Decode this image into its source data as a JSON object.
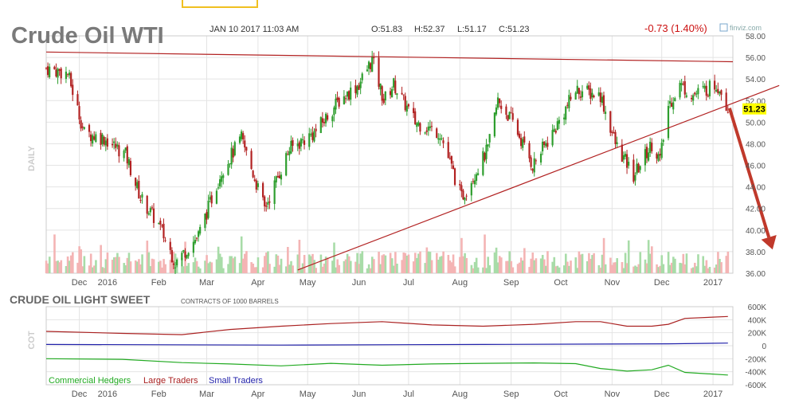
{
  "header": {
    "title": "Crude Oil WTI",
    "datetime": "JAN 10 2017 11:03 AM",
    "open": "O:51.83",
    "high": "H:52.37",
    "low": "L:51.17",
    "close": "C:51.23",
    "change": "-0.73 (1.40%)",
    "source": "finviz.com",
    "timeframe_label": "DAILY"
  },
  "colors": {
    "up": "#2e9e2e",
    "down": "#b22222",
    "trendline": "#b22222",
    "arrow": "#c0392b",
    "price_tag": "#ffff00",
    "axis_text": "#555555",
    "grid": "#e4e4e4",
    "commercial": "#22aa22",
    "large": "#aa2222",
    "small": "#2222aa"
  },
  "chart_data": [
    {
      "type": "candlestick",
      "title": "Crude Oil WTI",
      "x_ticks": [
        "Dec",
        "2016",
        "Feb",
        "Mar",
        "Apr",
        "May",
        "Jun",
        "Jul",
        "Aug",
        "Sep",
        "Oct",
        "Nov",
        "Dec",
        "2017"
      ],
      "y_ticks": [
        "58.00",
        "56.00",
        "54.00",
        "52.00",
        "50.00",
        "48.00",
        "46.00",
        "44.00",
        "42.00",
        "40.00",
        "38.00",
        "36.00"
      ],
      "ylim": [
        36,
        58
      ],
      "last_price": "51.23",
      "grid": true,
      "closes": [
        {
          "date": "2015-11-25",
          "close": 55.0
        },
        {
          "date": "2015-12-08",
          "close": 54.5
        },
        {
          "date": "2015-12-18",
          "close": 49.0
        },
        {
          "date": "2015-12-30",
          "close": 48.5
        },
        {
          "date": "2016-01-12",
          "close": 47.0
        },
        {
          "date": "2016-01-21",
          "close": 43.0
        },
        {
          "date": "2016-02-01",
          "close": 40.5
        },
        {
          "date": "2016-02-11",
          "close": 37.0
        },
        {
          "date": "2016-02-25",
          "close": 39.5
        },
        {
          "date": "2016-03-10",
          "close": 45.5
        },
        {
          "date": "2016-03-22",
          "close": 48.5
        },
        {
          "date": "2016-04-05",
          "close": 42.0
        },
        {
          "date": "2016-04-20",
          "close": 47.5
        },
        {
          "date": "2016-05-05",
          "close": 49.0
        },
        {
          "date": "2016-05-20",
          "close": 52.0
        },
        {
          "date": "2016-06-01",
          "close": 53.5
        },
        {
          "date": "2016-06-09",
          "close": 55.8
        },
        {
          "date": "2016-06-16",
          "close": 52.0
        },
        {
          "date": "2016-06-22",
          "close": 53.5
        },
        {
          "date": "2016-07-05",
          "close": 50.0
        },
        {
          "date": "2016-07-20",
          "close": 49.0
        },
        {
          "date": "2016-08-02",
          "close": 43.0
        },
        {
          "date": "2016-08-18",
          "close": 47.5
        },
        {
          "date": "2016-08-24",
          "close": 52.0
        },
        {
          "date": "2016-09-02",
          "close": 50.0
        },
        {
          "date": "2016-09-14",
          "close": 46.0
        },
        {
          "date": "2016-09-28",
          "close": 49.5
        },
        {
          "date": "2016-10-10",
          "close": 53.0
        },
        {
          "date": "2016-10-25",
          "close": 52.5
        },
        {
          "date": "2016-11-03",
          "close": 48.0
        },
        {
          "date": "2016-11-14",
          "close": 45.0
        },
        {
          "date": "2016-11-25",
          "close": 48.0
        },
        {
          "date": "2016-11-30",
          "close": 46.5
        },
        {
          "date": "2016-12-05",
          "close": 51.5
        },
        {
          "date": "2016-12-12",
          "close": 53.5
        },
        {
          "date": "2016-12-20",
          "close": 52.5
        },
        {
          "date": "2017-01-03",
          "close": 53.5
        },
        {
          "date": "2017-01-06",
          "close": 53.0
        },
        {
          "date": "2017-01-10",
          "close": 51.23
        }
      ],
      "trendlines": [
        {
          "name": "resistance",
          "start": {
            "date": "2015-11-25",
            "value": 56.5
          },
          "end": {
            "date": "2017-01-13",
            "value": 55.6
          }
        },
        {
          "name": "support",
          "start": {
            "date": "2016-04-25",
            "value": 36.3
          },
          "end": {
            "date": "2017-02-10",
            "value": 53.4
          }
        }
      ],
      "projection_arrow": {
        "start": {
          "date": "2017-01-11",
          "value": 51.3
        },
        "end": {
          "date": "2017-02-06",
          "value": 38.2
        }
      }
    },
    {
      "type": "line",
      "title": "CRUDE OIL LIGHT SWEET",
      "subtitle": "CONTRACTS OF 1000 BARRELS",
      "ylabel": "COT",
      "x_ticks": [
        "Dec",
        "2016",
        "Feb",
        "Mar",
        "Apr",
        "May",
        "Jun",
        "Jul",
        "Aug",
        "Sep",
        "Oct",
        "Nov",
        "Dec",
        "2017"
      ],
      "y_ticks": [
        "600K",
        "400K",
        "200K",
        "0",
        "-200K",
        "-400K",
        "-600K"
      ],
      "ylim": [
        -600000,
        600000
      ],
      "grid": true,
      "legend": "bottom-left",
      "series": [
        {
          "name": "Commercial Hedgers",
          "color": "#22aa22",
          "points": [
            {
              "date": "2015-11-25",
              "value": -200000
            },
            {
              "date": "2016-01-10",
              "value": -210000
            },
            {
              "date": "2016-02-15",
              "value": -260000
            },
            {
              "date": "2016-03-15",
              "value": -280000
            },
            {
              "date": "2016-04-15",
              "value": -310000
            },
            {
              "date": "2016-05-15",
              "value": -270000
            },
            {
              "date": "2016-06-15",
              "value": -300000
            },
            {
              "date": "2016-07-15",
              "value": -280000
            },
            {
              "date": "2016-08-15",
              "value": -270000
            },
            {
              "date": "2016-09-15",
              "value": -265000
            },
            {
              "date": "2016-10-10",
              "value": -275000
            },
            {
              "date": "2016-10-25",
              "value": -350000
            },
            {
              "date": "2016-11-10",
              "value": -390000
            },
            {
              "date": "2016-11-25",
              "value": -370000
            },
            {
              "date": "2016-12-05",
              "value": -300000
            },
            {
              "date": "2016-12-15",
              "value": -410000
            },
            {
              "date": "2017-01-10",
              "value": -450000
            }
          ]
        },
        {
          "name": "Large Traders",
          "color": "#aa2222",
          "points": [
            {
              "date": "2015-11-25",
              "value": 220000
            },
            {
              "date": "2016-01-10",
              "value": 190000
            },
            {
              "date": "2016-02-15",
              "value": 170000
            },
            {
              "date": "2016-03-15",
              "value": 250000
            },
            {
              "date": "2016-04-15",
              "value": 300000
            },
            {
              "date": "2016-05-15",
              "value": 340000
            },
            {
              "date": "2016-06-15",
              "value": 370000
            },
            {
              "date": "2016-07-15",
              "value": 320000
            },
            {
              "date": "2016-08-15",
              "value": 300000
            },
            {
              "date": "2016-09-15",
              "value": 330000
            },
            {
              "date": "2016-10-10",
              "value": 370000
            },
            {
              "date": "2016-10-25",
              "value": 370000
            },
            {
              "date": "2016-11-10",
              "value": 300000
            },
            {
              "date": "2016-11-25",
              "value": 300000
            },
            {
              "date": "2016-12-05",
              "value": 330000
            },
            {
              "date": "2016-12-15",
              "value": 420000
            },
            {
              "date": "2017-01-10",
              "value": 450000
            }
          ]
        },
        {
          "name": "Small Traders",
          "color": "#2222aa",
          "points": [
            {
              "date": "2015-11-25",
              "value": 20000
            },
            {
              "date": "2016-04-15",
              "value": 10000
            },
            {
              "date": "2016-08-15",
              "value": 20000
            },
            {
              "date": "2016-12-05",
              "value": 30000
            },
            {
              "date": "2017-01-10",
              "value": 40000
            }
          ]
        }
      ]
    }
  ]
}
